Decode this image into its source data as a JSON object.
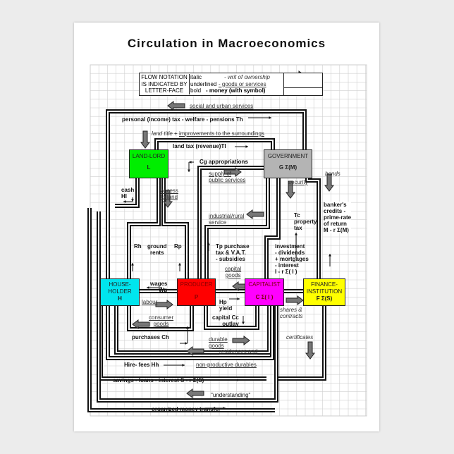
{
  "title": "Circulation in Macroeconomics",
  "legend": {
    "heading": [
      "FLOW NOTATION",
      "IS INDICATED BY",
      "LETTER-FACE"
    ],
    "rows": [
      {
        "face": "italic",
        "meaning": "- writ of ownership",
        "arrow": "fat-gray-arrow"
      },
      {
        "face": "underlined",
        "meaning": "- goods or services",
        "arrow": "fat-gray-arrow"
      },
      {
        "face": "bold",
        "meaning": "- money (with symbol)",
        "arrow": "thin-black-arrow"
      }
    ]
  },
  "boxes": {
    "landlord": {
      "name": "LAND-LORD",
      "symbol": "L",
      "color": "#00ee00"
    },
    "government": {
      "name": "GOVERNMENT",
      "symbol": "G  Σ(M)",
      "color": "#b4b4b4"
    },
    "householder": {
      "name1": "HOUSE-",
      "name2": "HOLDER",
      "symbol": "H",
      "color": "#00e5ee"
    },
    "producer": {
      "name": "PRODUCER",
      "symbol": "P",
      "color": "#ff0000"
    },
    "capitalist": {
      "name": "CAPITALIST",
      "symbol": "C   Σ( I )",
      "color": "#ff00ff"
    },
    "finance": {
      "name1": "FINANCE-",
      "name2": "INSTITUTION",
      "symbol": "F    Σ(S)",
      "color": "#ffff00"
    }
  },
  "labels": {
    "social": "social and urban services",
    "th": "personal (income) tax - welfare - pensions  Th",
    "land_title": "land title",
    "plus": "+",
    "improvements": "improvements to the surroundings",
    "tl": "land tax (revenue)Tl",
    "cg": "Cg  appropriations",
    "supply1": "supply of",
    "supply2": "public services",
    "bonds": "bonds",
    "security": "security",
    "cash1": "cash",
    "cash2": "Hl",
    "access1": "access",
    "access2": "to land",
    "bankers": [
      "banker's",
      "credits -",
      "prime-rate",
      "of return",
      "M - r Σ(M)"
    ],
    "industrial1": "industrial/rural",
    "industrial2": "service",
    "tc": [
      "Tc",
      "property",
      "tax"
    ],
    "rh": "Rh",
    "ground1": "ground",
    "ground2": "rents",
    "rp": "Rp",
    "tp": [
      "Tp purchase",
      "tax & V.A.T.",
      "- subsidies"
    ],
    "investment": [
      "investment",
      "- dividends",
      "+ mortgages",
      "- interest",
      "I - r Σ( I )"
    ],
    "capital_goods1": "capital",
    "capital_goods2": "goods",
    "wages1": "wages",
    "wages2": "Wp",
    "labour": "labour",
    "hp1": "Hp",
    "hp2": "yield",
    "shares1": "shares &",
    "shares2": "contracts",
    "consumer1": "consumer",
    "consumer2": "goods",
    "cc1": "capital  Cc",
    "cc2": "outlay",
    "purchases": "purchases  Ch",
    "durable1": "durable",
    "durable2": "goods",
    "certificates": "certificates",
    "residences": "residences and",
    "hire": "Hire- fees  Hh",
    "nonprod": "non-productive durables",
    "savings": "savings - loans - interest  S - r Σ(S)",
    "understanding": "\"understanding\"",
    "organized": "organized money transfer"
  }
}
